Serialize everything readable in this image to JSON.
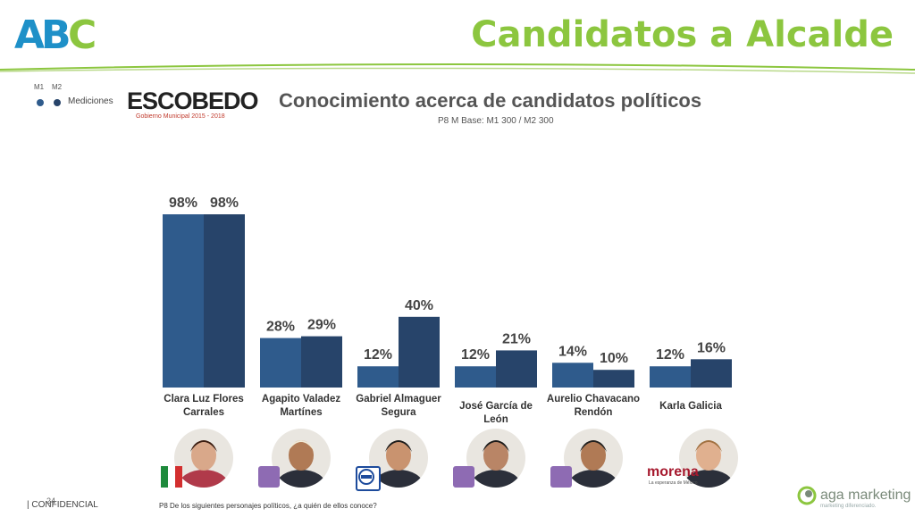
{
  "header": {
    "logo_text": "ABC",
    "title": "Candidatos a Alcalde"
  },
  "legend": {
    "m1": "M1",
    "m2": "M2",
    "label": "Mediciones"
  },
  "brand": {
    "name": "ESCOBEDO",
    "tagline": "Gobierno Municipal 2015 - 2018"
  },
  "colors": {
    "m1": "#2f5b8c",
    "m2": "#27446a",
    "accent": "#8cc63f"
  },
  "chart_data": {
    "type": "bar",
    "title": "Conocimiento acerca de candidatos políticos",
    "subtitle": "P8 M Base: M1 300 / M2 300",
    "categories": [
      "Clara Luz Flores Carrales",
      "Agapito Valadez Martínes",
      "Gabriel Almaguer Segura",
      "José García de León",
      "Aurelio Chavacano Rendón",
      "Karla Galicia"
    ],
    "series": [
      {
        "name": "M1",
        "values": [
          98,
          28,
          12,
          12,
          14,
          12
        ]
      },
      {
        "name": "M2",
        "values": [
          98,
          29,
          40,
          21,
          10,
          16
        ]
      }
    ],
    "value_suffix": "%",
    "ylim": [
      0,
      100
    ],
    "grid": false
  },
  "candidates": [
    {
      "label_line1": "Clara Luz Flores",
      "label_line2": "Carrales",
      "party": "pri-logo"
    },
    {
      "label_line1": "Agapito Valadez",
      "label_line2": "Martínes",
      "party": "purple-square"
    },
    {
      "label_line1": "Gabriel Almaguer",
      "label_line2": "Segura",
      "party": "pan-logo"
    },
    {
      "label_line1": "José García de León",
      "label_line2": "",
      "party": "purple-square"
    },
    {
      "label_line1": "Aurelio Chavacano",
      "label_line2": "Rendón",
      "party": "purple-square"
    },
    {
      "label_line1": "Karla Galicia",
      "label_line2": "",
      "party": "morena-logo"
    }
  ],
  "morena": {
    "name": "morena",
    "tagline": "La esperanza de México"
  },
  "footer": {
    "confidential": "| CONFIDENCIAL",
    "page_number": "24",
    "question": "P8 De los siguientes personajes políticos, ¿a quién de ellos conoce?",
    "company": "aga marketing",
    "company_tagline": "marketing diferenciado."
  }
}
